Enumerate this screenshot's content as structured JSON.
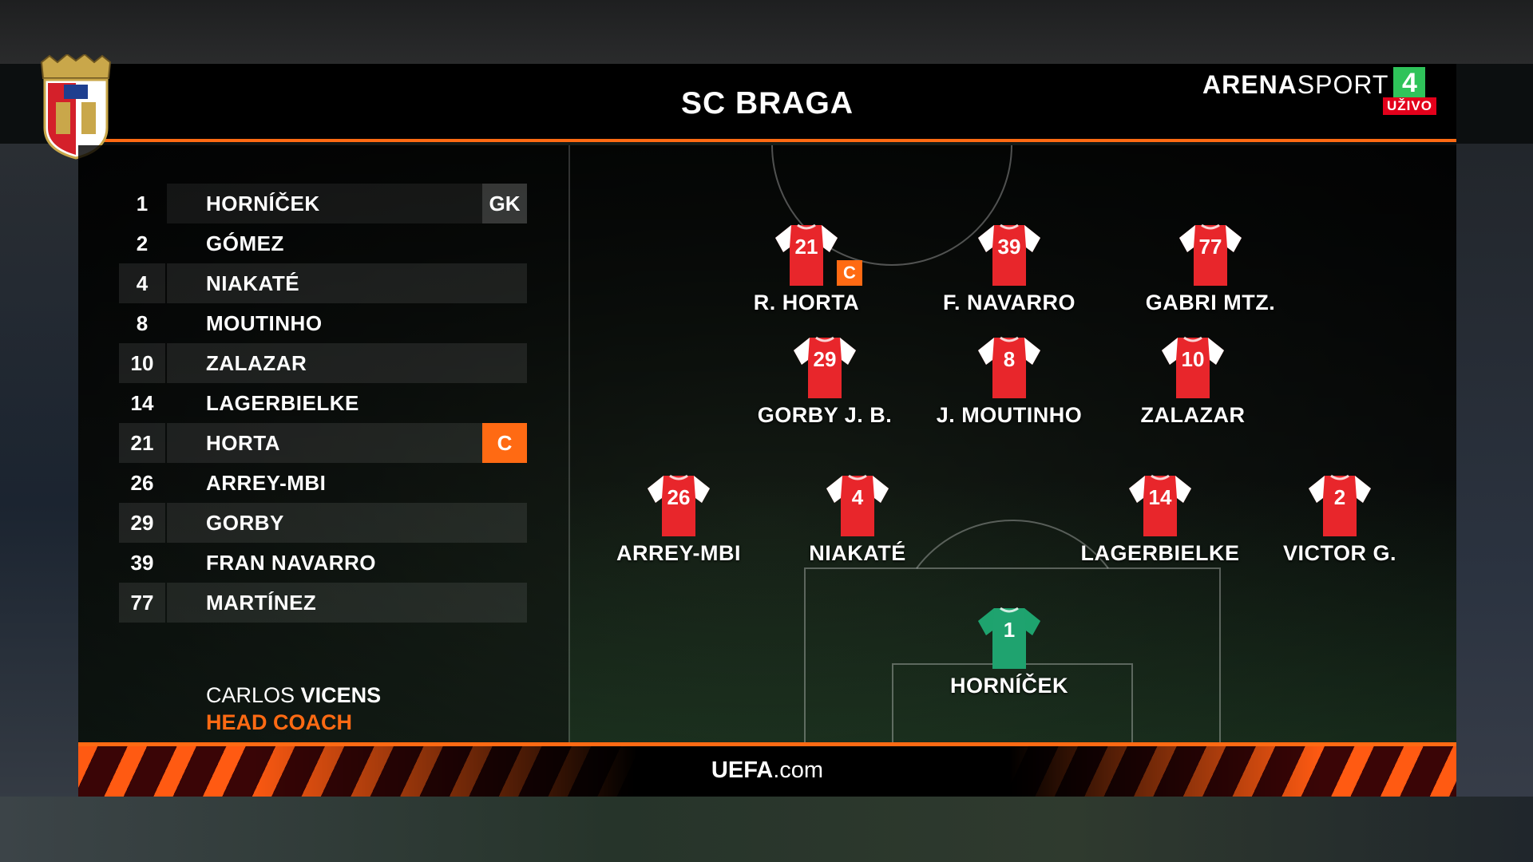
{
  "header": {
    "title": "SC BRAGA",
    "crest_icon": "sc-braga-crest"
  },
  "broadcaster": {
    "name_bold": "ARENA",
    "name_light": "SPORT",
    "channel": "4",
    "live": "UŽIVO",
    "channel_color": "#2fc35a",
    "live_color": "#e3001b"
  },
  "accent_color": "#ff6a13",
  "squad": [
    {
      "number": "1",
      "name": "HORNÍČEK",
      "badge": "GK"
    },
    {
      "number": "2",
      "name": "GÓMEZ"
    },
    {
      "number": "4",
      "name": "NIAKATÉ"
    },
    {
      "number": "8",
      "name": "MOUTINHO"
    },
    {
      "number": "10",
      "name": "ZALAZAR"
    },
    {
      "number": "14",
      "name": "LAGERBIELKE"
    },
    {
      "number": "21",
      "name": "HORTA",
      "badge": "C"
    },
    {
      "number": "26",
      "name": "ARREY-MBI"
    },
    {
      "number": "29",
      "name": "GORBY"
    },
    {
      "number": "39",
      "name": "FRAN NAVARRO"
    },
    {
      "number": "77",
      "name": "MARTÍNEZ"
    }
  ],
  "coach": {
    "first_name": "CARLOS",
    "last_name": "VICENS",
    "role": "HEAD COACH"
  },
  "formation": [
    {
      "number": "21",
      "name": "R. HORTA",
      "captain": "C",
      "kit": "outfield"
    },
    {
      "number": "39",
      "name": "F. NAVARRO",
      "kit": "outfield"
    },
    {
      "number": "77",
      "name": "GABRI MTZ.",
      "kit": "outfield"
    },
    {
      "number": "29",
      "name": "GORBY J. B.",
      "kit": "outfield"
    },
    {
      "number": "8",
      "name": "J. MOUTINHO",
      "kit": "outfield"
    },
    {
      "number": "10",
      "name": "ZALAZAR",
      "kit": "outfield"
    },
    {
      "number": "26",
      "name": "ARREY-MBI",
      "kit": "outfield"
    },
    {
      "number": "4",
      "name": "NIAKATÉ",
      "kit": "outfield"
    },
    {
      "number": "14",
      "name": "LAGERBIELKE",
      "kit": "outfield"
    },
    {
      "number": "2",
      "name": "VICTOR G.",
      "kit": "outfield"
    },
    {
      "number": "1",
      "name": "HORNÍČEK",
      "kit": "goalkeeper"
    }
  ],
  "kit_colors": {
    "outfield_body": "#e8262b",
    "outfield_sleeves": "#ffffff",
    "goalkeeper": "#1fa36f"
  },
  "footer": {
    "site_bold": "UEFA",
    "site_rest": ".com"
  }
}
